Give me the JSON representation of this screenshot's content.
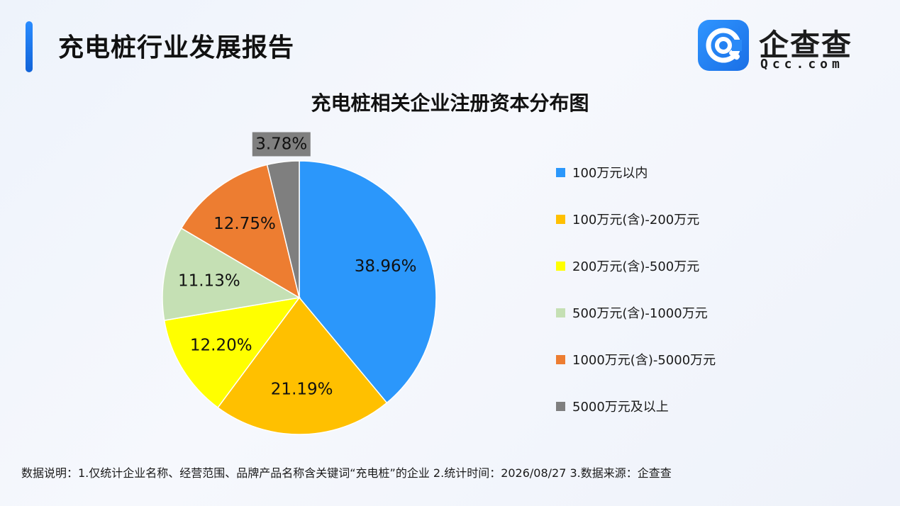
{
  "header": {
    "title": "充电桩行业发展报告"
  },
  "logo": {
    "name": "企查查",
    "domain": "Qcc.com",
    "icon": "qcc-logo-icon",
    "brand_color": "#1f7ff0"
  },
  "chart_data": {
    "type": "pie",
    "title": "充电桩相关企业注册资本分布图",
    "categories": [
      "100万元以内",
      "100万元(含)-200万元",
      "200万元(含)-500万元",
      "500万元(含)-1000万元",
      "1000万元(含)-5000万元",
      "5000万元及以上"
    ],
    "values": [
      38.96,
      21.19,
      12.2,
      11.13,
      12.75,
      3.78
    ],
    "labels": [
      "38.96%",
      "21.19%",
      "12.20%",
      "11.13%",
      "12.75%",
      "3.78%"
    ],
    "colors": [
      "#2b97fb",
      "#ffc000",
      "#ffff00",
      "#c5e0b4",
      "#ed7d31",
      "#7f7f7f"
    ],
    "legend_position": "right"
  },
  "footer": {
    "note": "数据说明：1.仅统计企业名称、经营范围、品牌产品名称含关键词“充电桩”的企业    2.统计时间：2026/08/27    3.数据来源：企查查"
  }
}
